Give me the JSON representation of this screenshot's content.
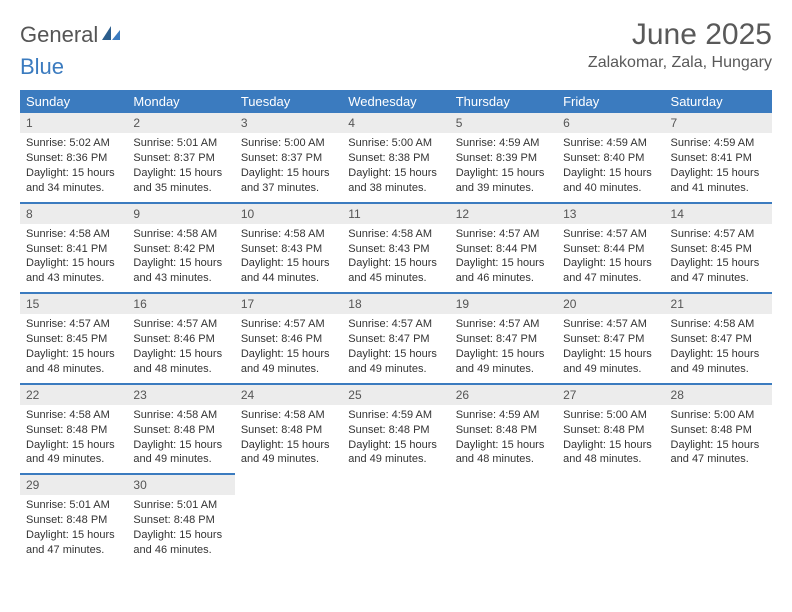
{
  "brand": {
    "word1": "General",
    "word2": "Blue",
    "color_general": "#555555",
    "color_blue": "#3b7bbf"
  },
  "header": {
    "month_title": "June 2025",
    "location": "Zalakomar, Zala, Hungary"
  },
  "styling": {
    "header_bg": "#3b7bbf",
    "header_text": "#ffffff",
    "daynum_bg": "#ececec",
    "cell_border": "#3b7bbf",
    "body_text": "#333333",
    "title_color": "#595959",
    "page_bg": "#ffffff",
    "font_family": "Arial, Helvetica, sans-serif",
    "th_fontsize": 13,
    "cell_fontsize": 11,
    "title_fontsize": 30,
    "location_fontsize": 16
  },
  "columns": [
    "Sunday",
    "Monday",
    "Tuesday",
    "Wednesday",
    "Thursday",
    "Friday",
    "Saturday"
  ],
  "weeks": [
    [
      {
        "n": "1",
        "sr": "Sunrise: 5:02 AM",
        "ss": "Sunset: 8:36 PM",
        "d1": "Daylight: 15 hours",
        "d2": "and 34 minutes."
      },
      {
        "n": "2",
        "sr": "Sunrise: 5:01 AM",
        "ss": "Sunset: 8:37 PM",
        "d1": "Daylight: 15 hours",
        "d2": "and 35 minutes."
      },
      {
        "n": "3",
        "sr": "Sunrise: 5:00 AM",
        "ss": "Sunset: 8:37 PM",
        "d1": "Daylight: 15 hours",
        "d2": "and 37 minutes."
      },
      {
        "n": "4",
        "sr": "Sunrise: 5:00 AM",
        "ss": "Sunset: 8:38 PM",
        "d1": "Daylight: 15 hours",
        "d2": "and 38 minutes."
      },
      {
        "n": "5",
        "sr": "Sunrise: 4:59 AM",
        "ss": "Sunset: 8:39 PM",
        "d1": "Daylight: 15 hours",
        "d2": "and 39 minutes."
      },
      {
        "n": "6",
        "sr": "Sunrise: 4:59 AM",
        "ss": "Sunset: 8:40 PM",
        "d1": "Daylight: 15 hours",
        "d2": "and 40 minutes."
      },
      {
        "n": "7",
        "sr": "Sunrise: 4:59 AM",
        "ss": "Sunset: 8:41 PM",
        "d1": "Daylight: 15 hours",
        "d2": "and 41 minutes."
      }
    ],
    [
      {
        "n": "8",
        "sr": "Sunrise: 4:58 AM",
        "ss": "Sunset: 8:41 PM",
        "d1": "Daylight: 15 hours",
        "d2": "and 43 minutes."
      },
      {
        "n": "9",
        "sr": "Sunrise: 4:58 AM",
        "ss": "Sunset: 8:42 PM",
        "d1": "Daylight: 15 hours",
        "d2": "and 43 minutes."
      },
      {
        "n": "10",
        "sr": "Sunrise: 4:58 AM",
        "ss": "Sunset: 8:43 PM",
        "d1": "Daylight: 15 hours",
        "d2": "and 44 minutes."
      },
      {
        "n": "11",
        "sr": "Sunrise: 4:58 AM",
        "ss": "Sunset: 8:43 PM",
        "d1": "Daylight: 15 hours",
        "d2": "and 45 minutes."
      },
      {
        "n": "12",
        "sr": "Sunrise: 4:57 AM",
        "ss": "Sunset: 8:44 PM",
        "d1": "Daylight: 15 hours",
        "d2": "and 46 minutes."
      },
      {
        "n": "13",
        "sr": "Sunrise: 4:57 AM",
        "ss": "Sunset: 8:44 PM",
        "d1": "Daylight: 15 hours",
        "d2": "and 47 minutes."
      },
      {
        "n": "14",
        "sr": "Sunrise: 4:57 AM",
        "ss": "Sunset: 8:45 PM",
        "d1": "Daylight: 15 hours",
        "d2": "and 47 minutes."
      }
    ],
    [
      {
        "n": "15",
        "sr": "Sunrise: 4:57 AM",
        "ss": "Sunset: 8:45 PM",
        "d1": "Daylight: 15 hours",
        "d2": "and 48 minutes."
      },
      {
        "n": "16",
        "sr": "Sunrise: 4:57 AM",
        "ss": "Sunset: 8:46 PM",
        "d1": "Daylight: 15 hours",
        "d2": "and 48 minutes."
      },
      {
        "n": "17",
        "sr": "Sunrise: 4:57 AM",
        "ss": "Sunset: 8:46 PM",
        "d1": "Daylight: 15 hours",
        "d2": "and 49 minutes."
      },
      {
        "n": "18",
        "sr": "Sunrise: 4:57 AM",
        "ss": "Sunset: 8:47 PM",
        "d1": "Daylight: 15 hours",
        "d2": "and 49 minutes."
      },
      {
        "n": "19",
        "sr": "Sunrise: 4:57 AM",
        "ss": "Sunset: 8:47 PM",
        "d1": "Daylight: 15 hours",
        "d2": "and 49 minutes."
      },
      {
        "n": "20",
        "sr": "Sunrise: 4:57 AM",
        "ss": "Sunset: 8:47 PM",
        "d1": "Daylight: 15 hours",
        "d2": "and 49 minutes."
      },
      {
        "n": "21",
        "sr": "Sunrise: 4:58 AM",
        "ss": "Sunset: 8:47 PM",
        "d1": "Daylight: 15 hours",
        "d2": "and 49 minutes."
      }
    ],
    [
      {
        "n": "22",
        "sr": "Sunrise: 4:58 AM",
        "ss": "Sunset: 8:48 PM",
        "d1": "Daylight: 15 hours",
        "d2": "and 49 minutes."
      },
      {
        "n": "23",
        "sr": "Sunrise: 4:58 AM",
        "ss": "Sunset: 8:48 PM",
        "d1": "Daylight: 15 hours",
        "d2": "and 49 minutes."
      },
      {
        "n": "24",
        "sr": "Sunrise: 4:58 AM",
        "ss": "Sunset: 8:48 PM",
        "d1": "Daylight: 15 hours",
        "d2": "and 49 minutes."
      },
      {
        "n": "25",
        "sr": "Sunrise: 4:59 AM",
        "ss": "Sunset: 8:48 PM",
        "d1": "Daylight: 15 hours",
        "d2": "and 49 minutes."
      },
      {
        "n": "26",
        "sr": "Sunrise: 4:59 AM",
        "ss": "Sunset: 8:48 PM",
        "d1": "Daylight: 15 hours",
        "d2": "and 48 minutes."
      },
      {
        "n": "27",
        "sr": "Sunrise: 5:00 AM",
        "ss": "Sunset: 8:48 PM",
        "d1": "Daylight: 15 hours",
        "d2": "and 48 minutes."
      },
      {
        "n": "28",
        "sr": "Sunrise: 5:00 AM",
        "ss": "Sunset: 8:48 PM",
        "d1": "Daylight: 15 hours",
        "d2": "and 47 minutes."
      }
    ],
    [
      {
        "n": "29",
        "sr": "Sunrise: 5:01 AM",
        "ss": "Sunset: 8:48 PM",
        "d1": "Daylight: 15 hours",
        "d2": "and 47 minutes."
      },
      {
        "n": "30",
        "sr": "Sunrise: 5:01 AM",
        "ss": "Sunset: 8:48 PM",
        "d1": "Daylight: 15 hours",
        "d2": "and 46 minutes."
      },
      null,
      null,
      null,
      null,
      null
    ]
  ]
}
